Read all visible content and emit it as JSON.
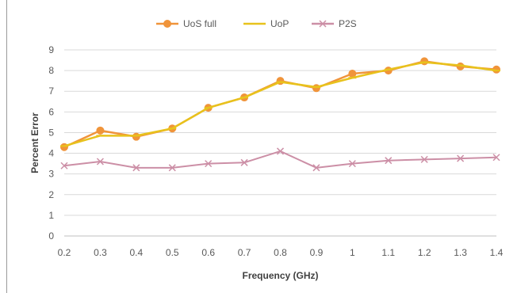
{
  "chart_data": {
    "type": "line",
    "title": "",
    "xlabel": "Frequency (GHz)",
    "ylabel": "Percent Error",
    "x": [
      0.2,
      0.3,
      0.4,
      0.5,
      0.6,
      0.7,
      0.8,
      0.9,
      1,
      1.1,
      1.2,
      1.3,
      1.4
    ],
    "x_tick_labels": [
      "0.2",
      "0.3",
      "0.4",
      "0.5",
      "0.6",
      "0.7",
      "0.8",
      "0.9",
      "1",
      "1.1",
      "1.2",
      "1.3",
      "1.4"
    ],
    "ylim": [
      0,
      9
    ],
    "y_ticks": [
      0,
      1,
      2,
      3,
      4,
      5,
      6,
      7,
      8,
      9
    ],
    "grid": true,
    "legend_position": "top",
    "series": [
      {
        "name": "UoS full",
        "color": "#f0943a",
        "marker": "circle",
        "values": [
          4.3,
          5.1,
          4.8,
          5.2,
          6.2,
          6.7,
          7.5,
          7.15,
          7.85,
          8.0,
          8.45,
          8.2,
          8.05
        ]
      },
      {
        "name": "UoP",
        "color": "#e8c21c",
        "marker": "dash",
        "values": [
          4.35,
          4.85,
          4.85,
          5.2,
          6.2,
          6.7,
          7.45,
          7.2,
          7.65,
          8.05,
          8.4,
          8.25,
          8.0
        ]
      },
      {
        "name": "P2S",
        "color": "#cc8fa6",
        "marker": "x",
        "values": [
          3.4,
          3.6,
          3.3,
          3.3,
          3.5,
          3.55,
          4.1,
          3.3,
          3.5,
          3.65,
          3.7,
          3.75,
          3.8
        ]
      }
    ]
  }
}
